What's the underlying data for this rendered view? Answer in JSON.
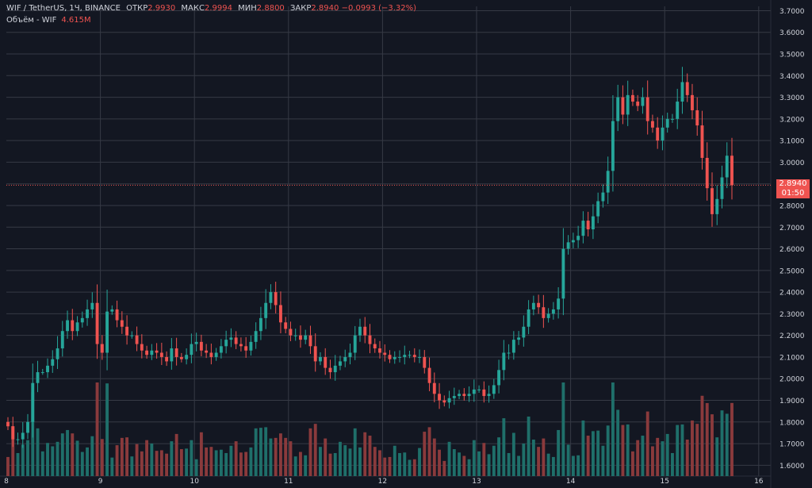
{
  "legend": {
    "symbol": "WIF / TetherUS, 1Ч, BINANCE",
    "open_label": "ОТКР",
    "open": "2.9930",
    "high_label": "МАКС",
    "high": "2.9994",
    "low_label": "МИН",
    "low": "2.8800",
    "close_label": "ЗАКР",
    "close": "2.8940",
    "change": "−0.0993 (−3.32%)",
    "volume_label": "Объём - WIF",
    "volume": "4.615M"
  },
  "price_tag": {
    "price": "2.8940",
    "countdown": "01:50"
  },
  "colors": {
    "background": "#131722",
    "grid": "#363a45",
    "up": "#26a69a",
    "down": "#ef5350",
    "up_volume": "#1f6f6a",
    "down_volume": "#8a3a3c",
    "axis_text": "#d1d4dc"
  },
  "chart_data": {
    "type": "candlestick",
    "interval": "1h",
    "y_axis": {
      "ticks": [
        "1.6000",
        "1.7000",
        "1.8000",
        "1.9000",
        "2.0000",
        "2.1000",
        "2.2000",
        "2.3000",
        "2.4000",
        "2.5000",
        "2.6000",
        "2.7000",
        "2.8000",
        "2.9000",
        "3.0000",
        "3.1000",
        "3.2000",
        "3.3000",
        "3.4000",
        "3.5000",
        "3.6000",
        "3.7000"
      ],
      "range": [
        1.55,
        3.72
      ],
      "position": "right"
    },
    "x_axis": {
      "ticks": [
        "8",
        "9",
        "10",
        "11",
        "12",
        "13",
        "14",
        "15",
        "16"
      ],
      "start_day": 8,
      "end_day": 16
    },
    "last_price": 2.894,
    "grid": true,
    "approx_closes": [
      1.78,
      1.72,
      1.72,
      1.75,
      1.8,
      1.98,
      2.03,
      2.03,
      2.06,
      2.09,
      2.14,
      2.22,
      2.27,
      2.22,
      2.26,
      2.28,
      2.32,
      2.35,
      2.16,
      2.12,
      2.31,
      2.32,
      2.27,
      2.24,
      2.2,
      2.2,
      2.16,
      2.13,
      2.11,
      2.13,
      2.12,
      2.1,
      2.08,
      2.14,
      2.1,
      2.09,
      2.11,
      2.16,
      2.17,
      2.13,
      2.12,
      2.1,
      2.12,
      2.15,
      2.18,
      2.19,
      2.16,
      2.15,
      2.13,
      2.17,
      2.22,
      2.28,
      2.35,
      2.4,
      2.34,
      2.26,
      2.23,
      2.2,
      2.2,
      2.18,
      2.2,
      2.15,
      2.08,
      2.1,
      2.05,
      2.03,
      2.06,
      2.08,
      2.1,
      2.12,
      2.2,
      2.24,
      2.2,
      2.16,
      2.14,
      2.12,
      2.11,
      2.09,
      2.1,
      2.1,
      2.11,
      2.11,
      2.1,
      2.1,
      2.05,
      1.98,
      1.93,
      1.9,
      1.89,
      1.91,
      1.92,
      1.93,
      1.92,
      1.93,
      1.95,
      1.95,
      1.92,
      1.93,
      1.97,
      2.04,
      2.12,
      2.12,
      2.18,
      2.19,
      2.24,
      2.32,
      2.35,
      2.33,
      2.28,
      2.3,
      2.32,
      2.37,
      2.6,
      2.63,
      2.64,
      2.66,
      2.73,
      2.69,
      2.75,
      2.82,
      2.86,
      2.96,
      3.19,
      3.3,
      3.22,
      3.31,
      3.28,
      3.26,
      3.3,
      3.19,
      3.16,
      3.1,
      3.16,
      3.2,
      3.2,
      3.28,
      3.37,
      3.31,
      3.24,
      3.17,
      3.02,
      2.88,
      2.76,
      2.83,
      2.93,
      3.03,
      2.894
    ],
    "volume_label": "Объём - WIF",
    "last_volume": "4.615M"
  }
}
